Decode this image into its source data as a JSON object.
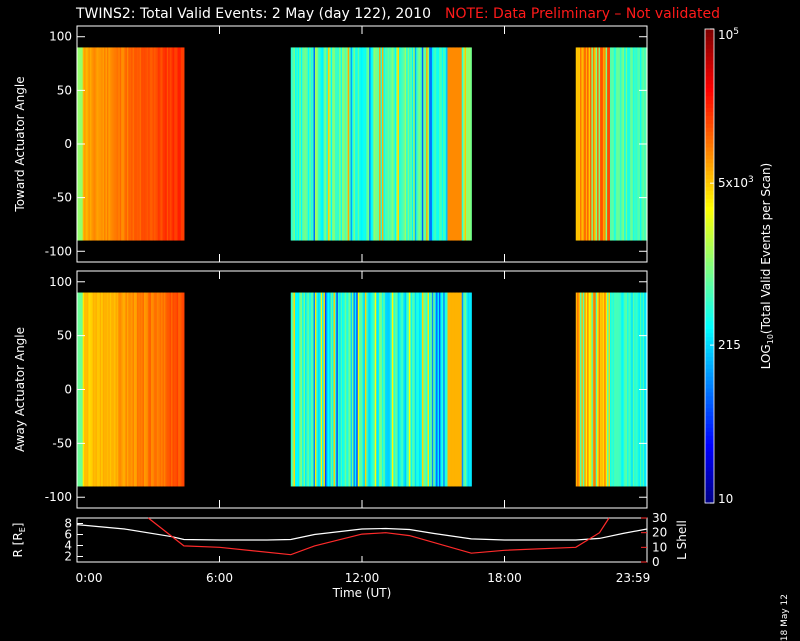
{
  "title": {
    "main": "TWINS2: Total Valid Events:  2 May (day 122), 2010",
    "note": "NOTE: Data Preliminary – Not validated"
  },
  "date_stamp": "18 May 12",
  "colors": {
    "background": "#000000",
    "axis": "#ffffff",
    "note": "#ff1a1a",
    "l_shell_line": "#ff2a2a",
    "r_line": "#ffffff"
  },
  "colorbar": {
    "label": "LOG10(Total Valid Events per Scan)",
    "label_main": "LOG",
    "label_sub": "10",
    "label_rest": "(Total Valid Events per Scan)",
    "ticks": [
      {
        "value": 100000,
        "label": "10",
        "sup": "5"
      },
      {
        "value": 5000,
        "label": "5x10",
        "sup": "3"
      },
      {
        "value": 215,
        "label": "215",
        "sup": ""
      },
      {
        "value": 10,
        "label": "10",
        "sup": ""
      }
    ],
    "range": [
      10,
      100000
    ],
    "scale": "log"
  },
  "x_axis": {
    "label": "Time (UT)",
    "ticks": [
      "0:00",
      "6:00",
      "12:00",
      "18:00",
      "23:59"
    ]
  },
  "chart_data": [
    {
      "type": "heatmap",
      "name": "toward",
      "ylabel": "Toward Actuator Angle",
      "ylim": [
        -110,
        110
      ],
      "yticks": [
        "100",
        "50",
        "0",
        "-50",
        "-100"
      ],
      "data_y_range": [
        -90,
        90
      ],
      "xlim_hours": [
        0,
        24
      ],
      "segments": [
        {
          "start_hour": 0.0,
          "end_hour": 4.5,
          "level": "high"
        },
        {
          "start_hour": 9.0,
          "end_hour": 16.6,
          "level": "medium"
        },
        {
          "start_hour": 21.0,
          "end_hour": 24.0,
          "level": "mixed"
        }
      ]
    },
    {
      "type": "heatmap",
      "name": "away",
      "ylabel": "Away Actuator Angle",
      "ylim": [
        -110,
        110
      ],
      "yticks": [
        "100",
        "50",
        "0",
        "-50",
        "-100"
      ],
      "data_y_range": [
        -90,
        90
      ],
      "xlim_hours": [
        0,
        24
      ],
      "segments": [
        {
          "start_hour": 0.0,
          "end_hour": 4.5,
          "level": "high"
        },
        {
          "start_hour": 9.0,
          "end_hour": 16.6,
          "level": "medium"
        },
        {
          "start_hour": 21.0,
          "end_hour": 24.0,
          "level": "mixed"
        }
      ]
    },
    {
      "type": "line",
      "name": "ephemeris",
      "ylabel_left": "R [RE]",
      "ylabel_left_main": "R [R",
      "ylabel_left_sub": "E",
      "ylabel_left_end": "]",
      "ylabel_right": "L Shell",
      "ylim_left": [
        1,
        9
      ],
      "yticks_left": [
        "8",
        "6",
        "4",
        "2"
      ],
      "ylim_right": [
        0,
        30
      ],
      "yticks_right": [
        "30",
        "20",
        "10",
        "0"
      ],
      "series": [
        {
          "name": "R",
          "axis": "left",
          "x": [
            0,
            2,
            4,
            4.5,
            6,
            8,
            9,
            10,
            12,
            13,
            14,
            15,
            16.6,
            18,
            20,
            21,
            22,
            23,
            24
          ],
          "y": [
            7.8,
            7.0,
            5.6,
            5.1,
            5.0,
            5.0,
            5.1,
            6.0,
            7.0,
            7.1,
            6.9,
            6.2,
            5.2,
            5.0,
            5.0,
            5.0,
            5.3,
            6.2,
            7.0
          ]
        },
        {
          "name": "L Shell",
          "axis": "right",
          "x": [
            3.0,
            4.5,
            6,
            9,
            10,
            12,
            13,
            14,
            16.6,
            18,
            21,
            22,
            22.4
          ],
          "y": [
            30,
            11,
            10,
            5,
            11,
            19,
            20,
            18,
            6,
            8,
            10,
            20,
            30
          ]
        }
      ]
    }
  ]
}
